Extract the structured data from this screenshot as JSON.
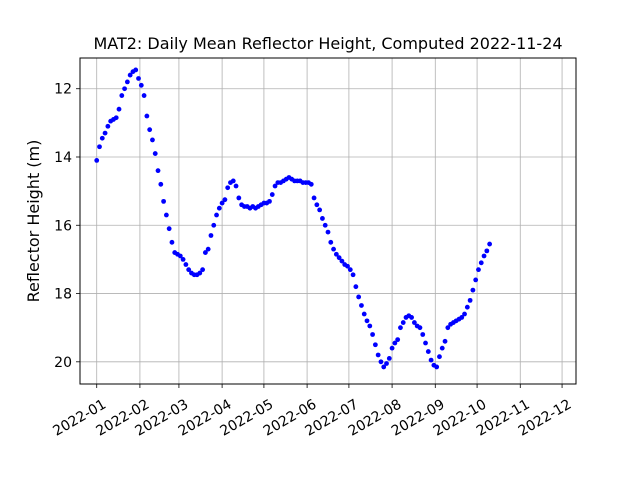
{
  "chart_data": {
    "type": "scatter",
    "title": "MAT2: Daily Mean Reflector Height, Computed 2022-11-24",
    "xlabel": "",
    "ylabel": "Reflector Height (m)",
    "ylim": [
      20.65,
      11.1
    ],
    "y_inverted": true,
    "xlim": [
      "2021-12-20",
      "2022-12-11"
    ],
    "grid": true,
    "x_ticks": [
      "2022-01",
      "2022-02",
      "2022-03",
      "2022-04",
      "2022-05",
      "2022-06",
      "2022-07",
      "2022-08",
      "2022-09",
      "2022-10",
      "2022-11",
      "2022-12"
    ],
    "y_ticks": [
      12,
      14,
      16,
      18,
      20
    ],
    "marker_color": "#0000ff",
    "series": [
      {
        "points": [
          [
            "2022-01-01",
            14.1
          ],
          [
            "2022-01-03",
            13.7
          ],
          [
            "2022-01-05",
            13.45
          ],
          [
            "2022-01-07",
            13.3
          ],
          [
            "2022-01-09",
            13.1
          ],
          [
            "2022-01-11",
            12.95
          ],
          [
            "2022-01-13",
            12.9
          ],
          [
            "2022-01-15",
            12.85
          ],
          [
            "2022-01-17",
            12.6
          ],
          [
            "2022-01-19",
            12.2
          ],
          [
            "2022-01-21",
            12.0
          ],
          [
            "2022-01-23",
            11.8
          ],
          [
            "2022-01-25",
            11.6
          ],
          [
            "2022-01-27",
            11.5
          ],
          [
            "2022-01-29",
            11.45
          ],
          [
            "2022-01-31",
            11.7
          ],
          [
            "2022-02-02",
            11.9
          ],
          [
            "2022-02-04",
            12.2
          ],
          [
            "2022-02-06",
            12.8
          ],
          [
            "2022-02-08",
            13.2
          ],
          [
            "2022-02-10",
            13.5
          ],
          [
            "2022-02-12",
            13.9
          ],
          [
            "2022-02-14",
            14.4
          ],
          [
            "2022-02-16",
            14.8
          ],
          [
            "2022-02-18",
            15.3
          ],
          [
            "2022-02-20",
            15.7
          ],
          [
            "2022-02-22",
            16.1
          ],
          [
            "2022-02-24",
            16.5
          ],
          [
            "2022-02-26",
            16.8
          ],
          [
            "2022-02-28",
            16.85
          ],
          [
            "2022-03-02",
            16.9
          ],
          [
            "2022-03-04",
            17.0
          ],
          [
            "2022-03-06",
            17.15
          ],
          [
            "2022-03-08",
            17.3
          ],
          [
            "2022-03-10",
            17.4
          ],
          [
            "2022-03-12",
            17.45
          ],
          [
            "2022-03-14",
            17.45
          ],
          [
            "2022-03-16",
            17.4
          ],
          [
            "2022-03-18",
            17.3
          ],
          [
            "2022-03-20",
            16.8
          ],
          [
            "2022-03-22",
            16.7
          ],
          [
            "2022-03-24",
            16.3
          ],
          [
            "2022-03-26",
            16.0
          ],
          [
            "2022-03-28",
            15.7
          ],
          [
            "2022-03-30",
            15.5
          ],
          [
            "2022-04-01",
            15.35
          ],
          [
            "2022-04-03",
            15.25
          ],
          [
            "2022-04-05",
            14.9
          ],
          [
            "2022-04-07",
            14.75
          ],
          [
            "2022-04-09",
            14.7
          ],
          [
            "2022-04-11",
            14.85
          ],
          [
            "2022-04-13",
            15.2
          ],
          [
            "2022-04-15",
            15.4
          ],
          [
            "2022-04-17",
            15.45
          ],
          [
            "2022-04-19",
            15.45
          ],
          [
            "2022-04-21",
            15.5
          ],
          [
            "2022-04-23",
            15.45
          ],
          [
            "2022-04-25",
            15.5
          ],
          [
            "2022-04-27",
            15.45
          ],
          [
            "2022-04-29",
            15.4
          ],
          [
            "2022-05-01",
            15.35
          ],
          [
            "2022-05-03",
            15.35
          ],
          [
            "2022-05-05",
            15.3
          ],
          [
            "2022-05-07",
            15.1
          ],
          [
            "2022-05-09",
            14.85
          ],
          [
            "2022-05-11",
            14.75
          ],
          [
            "2022-05-13",
            14.75
          ],
          [
            "2022-05-15",
            14.7
          ],
          [
            "2022-05-17",
            14.65
          ],
          [
            "2022-05-19",
            14.6
          ],
          [
            "2022-05-21",
            14.65
          ],
          [
            "2022-05-23",
            14.7
          ],
          [
            "2022-05-25",
            14.7
          ],
          [
            "2022-05-27",
            14.7
          ],
          [
            "2022-05-29",
            14.75
          ],
          [
            "2022-05-31",
            14.75
          ],
          [
            "2022-06-02",
            14.75
          ],
          [
            "2022-06-04",
            14.8
          ],
          [
            "2022-06-06",
            15.2
          ],
          [
            "2022-06-08",
            15.4
          ],
          [
            "2022-06-10",
            15.55
          ],
          [
            "2022-06-12",
            15.8
          ],
          [
            "2022-06-14",
            16.0
          ],
          [
            "2022-06-16",
            16.2
          ],
          [
            "2022-06-18",
            16.5
          ],
          [
            "2022-06-20",
            16.7
          ],
          [
            "2022-06-22",
            16.85
          ],
          [
            "2022-06-24",
            16.95
          ],
          [
            "2022-06-26",
            17.05
          ],
          [
            "2022-06-28",
            17.15
          ],
          [
            "2022-06-30",
            17.2
          ],
          [
            "2022-07-02",
            17.3
          ],
          [
            "2022-07-04",
            17.45
          ],
          [
            "2022-07-06",
            17.8
          ],
          [
            "2022-07-08",
            18.1
          ],
          [
            "2022-07-10",
            18.35
          ],
          [
            "2022-07-12",
            18.6
          ],
          [
            "2022-07-14",
            18.8
          ],
          [
            "2022-07-16",
            18.95
          ],
          [
            "2022-07-18",
            19.2
          ],
          [
            "2022-07-20",
            19.5
          ],
          [
            "2022-07-22",
            19.8
          ],
          [
            "2022-07-24",
            20.0
          ],
          [
            "2022-07-26",
            20.15
          ],
          [
            "2022-07-28",
            20.05
          ],
          [
            "2022-07-30",
            19.9
          ],
          [
            "2022-08-01",
            19.6
          ],
          [
            "2022-08-03",
            19.45
          ],
          [
            "2022-08-05",
            19.35
          ],
          [
            "2022-08-07",
            19.0
          ],
          [
            "2022-08-09",
            18.85
          ],
          [
            "2022-08-11",
            18.7
          ],
          [
            "2022-08-13",
            18.65
          ],
          [
            "2022-08-15",
            18.7
          ],
          [
            "2022-08-17",
            18.85
          ],
          [
            "2022-08-19",
            18.95
          ],
          [
            "2022-08-21",
            19.0
          ],
          [
            "2022-08-23",
            19.2
          ],
          [
            "2022-08-25",
            19.45
          ],
          [
            "2022-08-27",
            19.7
          ],
          [
            "2022-08-29",
            19.95
          ],
          [
            "2022-08-31",
            20.1
          ],
          [
            "2022-09-02",
            20.15
          ],
          [
            "2022-09-04",
            19.85
          ],
          [
            "2022-09-06",
            19.6
          ],
          [
            "2022-09-08",
            19.4
          ],
          [
            "2022-09-10",
            19.0
          ],
          [
            "2022-09-12",
            18.9
          ],
          [
            "2022-09-14",
            18.85
          ],
          [
            "2022-09-16",
            18.8
          ],
          [
            "2022-09-18",
            18.75
          ],
          [
            "2022-09-20",
            18.7
          ],
          [
            "2022-09-22",
            18.6
          ],
          [
            "2022-09-24",
            18.4
          ],
          [
            "2022-09-26",
            18.2
          ],
          [
            "2022-09-28",
            17.9
          ],
          [
            "2022-09-30",
            17.6
          ],
          [
            "2022-10-02",
            17.3
          ],
          [
            "2022-10-04",
            17.1
          ],
          [
            "2022-10-06",
            16.9
          ],
          [
            "2022-10-08",
            16.75
          ],
          [
            "2022-10-10",
            16.55
          ]
        ]
      }
    ]
  }
}
